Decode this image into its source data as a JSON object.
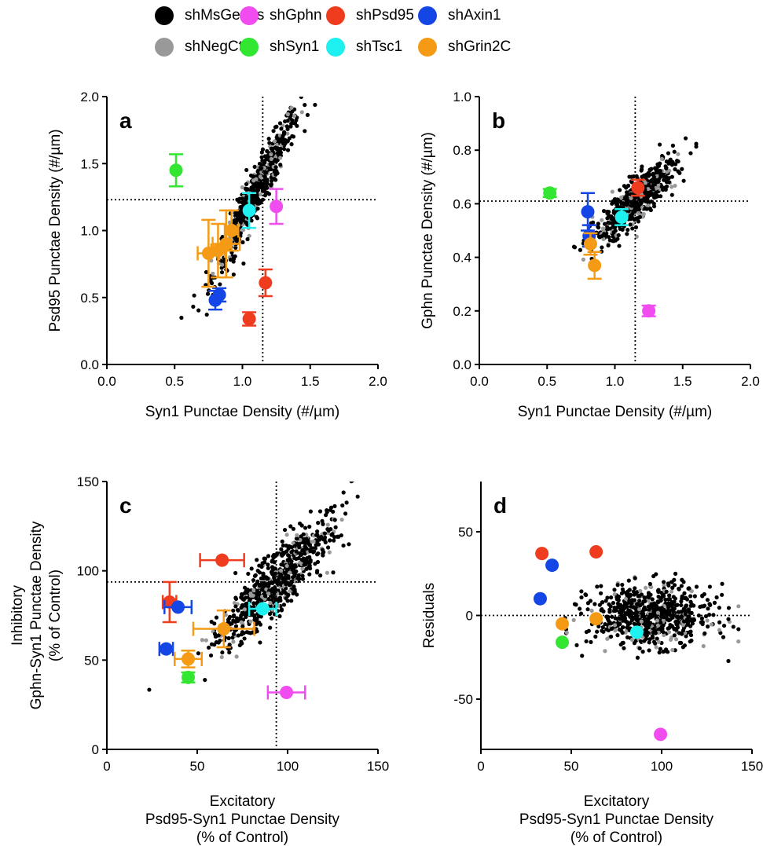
{
  "legend": [
    {
      "name": "shMsGenes",
      "color": "#000000"
    },
    {
      "name": "shGphn",
      "color": "#f04cf0"
    },
    {
      "name": "shPsd95",
      "color": "#f03c1e"
    },
    {
      "name": "shAxin1",
      "color": "#1446e6"
    },
    {
      "name": "shNegCtrl",
      "color": "#999999"
    },
    {
      "name": "shSyn1",
      "color": "#32e632"
    },
    {
      "name": "shTsc1",
      "color": "#1ef0f0"
    },
    {
      "name": "shGrin2C",
      "color": "#f59a14"
    }
  ],
  "chart_data": [
    {
      "panel": "a",
      "type": "scatter",
      "xlabel": [
        "Syn1 Punctae Density (#/µm)"
      ],
      "ylabel": [
        "Psd95 Punctae Density (#/µm)"
      ],
      "xlim": [
        0,
        2
      ],
      "ylim": [
        0,
        2
      ],
      "xticks": [
        "0.0",
        "0.5",
        "1.0",
        "1.5",
        "2.0"
      ],
      "yticks": [
        "0.0",
        "0.5",
        "1.0",
        "1.5",
        "2.0"
      ],
      "ref_x": 1.15,
      "ref_y": 1.23,
      "cloud": {
        "x_mean": 1.1,
        "x_sd": 0.16,
        "slope": 1.9,
        "intercept": -0.8,
        "noise": 0.09,
        "n_black": 520,
        "n_gray": 90,
        "x_min": 0.55,
        "x_max": 1.65
      },
      "points": [
        {
          "series": "shSyn1",
          "x": 0.51,
          "y": 1.45,
          "yerr": 0.12
        },
        {
          "series": "shGphn",
          "x": 1.25,
          "y": 1.18,
          "yerr": 0.13
        },
        {
          "series": "shTsc1",
          "x": 1.05,
          "y": 1.15,
          "yerr": 0.13
        },
        {
          "series": "shPsd95",
          "x": 1.17,
          "y": 0.61,
          "yerr": 0.1
        },
        {
          "series": "shPsd95",
          "x": 1.05,
          "y": 0.34,
          "yerr": 0.05
        },
        {
          "series": "shAxin1",
          "x": 0.8,
          "y": 0.48,
          "yerr": 0.07
        },
        {
          "series": "shAxin1",
          "x": 0.83,
          "y": 0.52,
          "yerr": 0.05
        },
        {
          "series": "shGrin2C",
          "x": 0.75,
          "y": 0.83,
          "yerr": 0.25,
          "xerr": 0.08
        },
        {
          "series": "shGrin2C",
          "x": 0.82,
          "y": 0.85,
          "yerr": 0.2,
          "xerr": 0.05
        },
        {
          "series": "shGrin2C",
          "x": 0.88,
          "y": 0.9,
          "yerr": 0.25,
          "xerr": 0.1
        },
        {
          "series": "shGrin2C",
          "x": 0.92,
          "y": 1.0,
          "yerr": 0.15,
          "xerr": 0.05
        }
      ]
    },
    {
      "panel": "b",
      "type": "scatter",
      "xlabel": [
        "Syn1 Punctae Density (#/µm)"
      ],
      "ylabel": [
        "Gphn Punctae Density (#/µm)"
      ],
      "xlim": [
        0,
        2
      ],
      "ylim": [
        0,
        1
      ],
      "xticks": [
        "0.0",
        "0.5",
        "1.0",
        "1.5",
        "2.0"
      ],
      "yticks": [
        "0.0",
        "0.2",
        "0.4",
        "0.6",
        "0.8",
        "1.0"
      ],
      "ref_x": 1.15,
      "ref_y": 0.61,
      "cloud": {
        "x_mean": 1.15,
        "x_sd": 0.15,
        "slope": 0.45,
        "intercept": 0.09,
        "noise": 0.04,
        "n_black": 520,
        "n_gray": 90,
        "x_min": 0.6,
        "x_max": 1.6
      },
      "points": [
        {
          "series": "shSyn1",
          "x": 0.52,
          "y": 0.64,
          "yerr": 0.015
        },
        {
          "series": "shGphn",
          "x": 1.25,
          "y": 0.2,
          "yerr": 0.02
        },
        {
          "series": "shPsd95",
          "x": 1.17,
          "y": 0.66,
          "yerr": 0.03
        },
        {
          "series": "shTsc1",
          "x": 1.05,
          "y": 0.55,
          "yerr": 0.03
        },
        {
          "series": "shAxin1",
          "x": 0.8,
          "y": 0.57,
          "yerr": 0.07
        },
        {
          "series": "shAxin1",
          "x": 0.81,
          "y": 0.48,
          "yerr": 0.04
        },
        {
          "series": "shGrin2C",
          "x": 0.82,
          "y": 0.45,
          "yerr": 0.04
        },
        {
          "series": "shGrin2C",
          "x": 0.85,
          "y": 0.37,
          "yerr": 0.05
        }
      ]
    },
    {
      "panel": "c",
      "type": "scatter",
      "xlabel": [
        "Excitatory",
        "Psd95-Syn1 Punctae Density",
        "(% of Control)"
      ],
      "ylabel": [
        "Inhibitory",
        "Gphn-Syn1 Punctae Density",
        "(% of Control)"
      ],
      "xlim": [
        0,
        160
      ],
      "ylim": [
        0,
        160
      ],
      "xticks": [
        "0",
        "50",
        "100",
        "150"
      ],
      "yticks": [
        "0",
        "50",
        "100",
        "150"
      ],
      "ref_x": 100,
      "ref_y": 100,
      "cloud": {
        "x_mean": 100,
        "x_sd": 18,
        "slope": 0.95,
        "intercept": 5,
        "noise": 9,
        "n_black": 600,
        "n_gray": 100,
        "x_min": 25,
        "x_max": 152
      },
      "points": [
        {
          "series": "shPsd95",
          "x": 68,
          "y": 113,
          "xerr": 13
        },
        {
          "series": "shPsd95",
          "x": 37,
          "y": 88,
          "yerr": 12,
          "xerr": 4
        },
        {
          "series": "shAxin1",
          "x": 42,
          "y": 85,
          "xerr": 8
        },
        {
          "series": "shAxin1",
          "x": 35,
          "y": 60,
          "xerr": 4
        },
        {
          "series": "shTsc1",
          "x": 92,
          "y": 84,
          "xerr": 8
        },
        {
          "series": "shGrin2C",
          "x": 69,
          "y": 72,
          "yerr": 11,
          "xerr": 18
        },
        {
          "series": "shGrin2C",
          "x": 48,
          "y": 54,
          "yerr": 5,
          "xerr": 8
        },
        {
          "series": "shSyn1",
          "x": 48,
          "y": 43,
          "yerr": 3
        },
        {
          "series": "shGphn",
          "x": 106,
          "y": 34,
          "xerr": 11
        }
      ]
    },
    {
      "panel": "d",
      "type": "scatter",
      "xlabel": [
        "Excitatory",
        "Psd95-Syn1 Punctae Density",
        "(% of Control)"
      ],
      "ylabel": [
        "Residuals"
      ],
      "xlim": [
        0,
        160
      ],
      "ylim": [
        -80,
        80
      ],
      "xticks": [
        "0",
        "50",
        "100",
        "150"
      ],
      "yticks": [
        "-50",
        "0",
        "50"
      ],
      "yticks_values": [
        -50,
        0,
        50
      ],
      "ref_y": 0,
      "cloud": {
        "x_mean": 100,
        "x_sd": 18,
        "slope": 0,
        "intercept": 0,
        "noise": 9,
        "n_black": 600,
        "n_gray": 100,
        "x_min": 25,
        "x_max": 152
      },
      "points": [
        {
          "series": "shPsd95",
          "x": 36,
          "y": 37
        },
        {
          "series": "shPsd95",
          "x": 68,
          "y": 38
        },
        {
          "series": "shAxin1",
          "x": 42,
          "y": 30
        },
        {
          "series": "shAxin1",
          "x": 35,
          "y": 10
        },
        {
          "series": "shGrin2C",
          "x": 68,
          "y": -2
        },
        {
          "series": "shGrin2C",
          "x": 48,
          "y": -5
        },
        {
          "series": "shSyn1",
          "x": 48,
          "y": -16
        },
        {
          "series": "shTsc1",
          "x": 92,
          "y": -10
        },
        {
          "series": "shGphn",
          "x": 106,
          "y": -71
        }
      ]
    }
  ]
}
